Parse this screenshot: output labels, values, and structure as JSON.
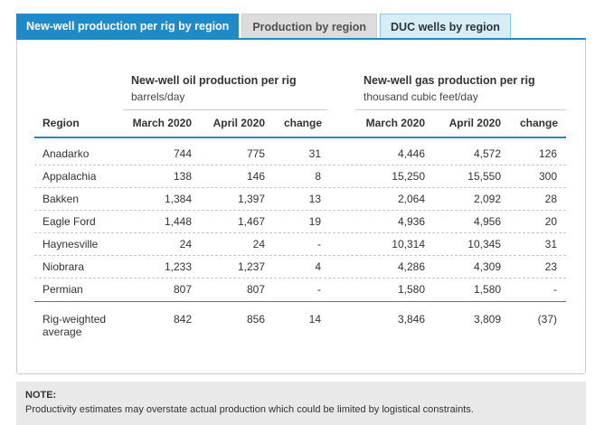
{
  "tabs": [
    {
      "label": "New-well production per rig by region",
      "active": true
    },
    {
      "label": "Production by region",
      "active": false
    },
    {
      "label": "DUC wells by region",
      "active": false
    }
  ],
  "colors": {
    "accent": "#1d8ac9",
    "tab_inactive": "#dcdcdc",
    "tab_light": "#d7eef8",
    "note_bg": "#e9e9e9"
  },
  "table": {
    "oil_group": {
      "title": "New-well oil production per rig",
      "unit": "barrels/day"
    },
    "gas_group": {
      "title": "New-well gas production per rig",
      "unit": "thousand cubic feet/day"
    },
    "headers": {
      "region": "Region",
      "oil_march": "March 2020",
      "oil_april": "April 2020",
      "oil_change": "change",
      "gas_march": "March 2020",
      "gas_april": "April 2020",
      "gas_change": "change"
    },
    "rows": [
      {
        "region": "Anadarko",
        "oil_march": "744",
        "oil_april": "775",
        "oil_change": "31",
        "gas_march": "4,446",
        "gas_april": "4,572",
        "gas_change": "126"
      },
      {
        "region": "Appalachia",
        "oil_march": "138",
        "oil_april": "146",
        "oil_change": "8",
        "gas_march": "15,250",
        "gas_april": "15,550",
        "gas_change": "300"
      },
      {
        "region": "Bakken",
        "oil_march": "1,384",
        "oil_april": "1,397",
        "oil_change": "13",
        "gas_march": "2,064",
        "gas_april": "2,092",
        "gas_change": "28"
      },
      {
        "region": "Eagle Ford",
        "oil_march": "1,448",
        "oil_april": "1,467",
        "oil_change": "19",
        "gas_march": "4,936",
        "gas_april": "4,956",
        "gas_change": "20"
      },
      {
        "region": "Haynesville",
        "oil_march": "24",
        "oil_april": "24",
        "oil_change": "-",
        "gas_march": "10,314",
        "gas_april": "10,345",
        "gas_change": "31"
      },
      {
        "region": "Niobrara",
        "oil_march": "1,233",
        "oil_april": "1,237",
        "oil_change": "4",
        "gas_march": "4,286",
        "gas_april": "4,309",
        "gas_change": "23"
      },
      {
        "region": "Permian",
        "oil_march": "807",
        "oil_april": "807",
        "oil_change": "-",
        "gas_march": "1,580",
        "gas_april": "1,580",
        "gas_change": "-"
      }
    ],
    "total": {
      "region_line1": "Rig-weighted",
      "region_line2": "average",
      "oil_march": "842",
      "oil_april": "856",
      "oil_change": "14",
      "gas_march": "3,846",
      "gas_april": "3,809",
      "gas_change": "(37)"
    }
  },
  "note": {
    "title": "NOTE:",
    "text": "Productivity estimates may overstate actual production which could be limited by logistical constraints."
  }
}
